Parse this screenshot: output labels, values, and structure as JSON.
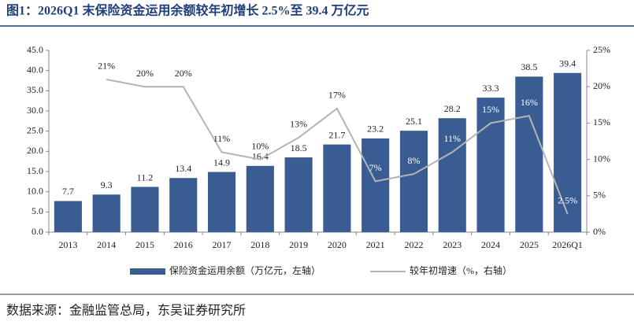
{
  "chart_data": {
    "type": "bar_line",
    "title": "图1：2026Q1 末保险资金运用余额较年初增长 2.5%至 39.4 万亿元",
    "source": "数据来源：金融监管总局，东吴证券研究所",
    "categories": [
      "2013",
      "2014",
      "2015",
      "2016",
      "2017",
      "2018",
      "2019",
      "2020",
      "2021",
      "2022",
      "2023",
      "2024",
      "2025",
      "2026Q1"
    ],
    "series": [
      {
        "name": "保险资金运用余额（万亿元，左轴）",
        "type": "bar",
        "color": "#395d92",
        "values": [
          7.7,
          9.3,
          11.2,
          13.4,
          14.9,
          16.4,
          18.5,
          21.7,
          23.2,
          25.1,
          28.2,
          33.3,
          38.5,
          39.4
        ]
      },
      {
        "name": "较年初增速（%，右轴）",
        "type": "line",
        "axis": "y2",
        "color": "#b4b4b4",
        "values": [
          null,
          21,
          20,
          20,
          11,
          10,
          13,
          17,
          7,
          8,
          11,
          15,
          16,
          2.5
        ],
        "value_labels": [
          null,
          "21%",
          "20%",
          "20%",
          "11%",
          "10%",
          "13%",
          "17%",
          "7%",
          "8%",
          "11%",
          "15%",
          "16%",
          "2.5%"
        ]
      }
    ],
    "ylim": [
      0,
      45
    ],
    "yticks": [
      {
        "value": 0,
        "label": "0.0"
      },
      {
        "value": 5,
        "label": "5.0"
      },
      {
        "value": 10,
        "label": "10.0"
      },
      {
        "value": 15,
        "label": "15.0"
      },
      {
        "value": 20,
        "label": "20.0"
      },
      {
        "value": 25,
        "label": "25.0"
      },
      {
        "value": 30,
        "label": "30.0"
      },
      {
        "value": 35,
        "label": "35.0"
      },
      {
        "value": 40,
        "label": "40.0"
      },
      {
        "value": 45,
        "label": "45.0"
      }
    ],
    "y2lim": [
      0,
      25
    ],
    "y2ticks": [
      {
        "value": 0,
        "label": "0%"
      },
      {
        "value": 5,
        "label": "5%"
      },
      {
        "value": 10,
        "label": "10%"
      },
      {
        "value": 15,
        "label": "15%"
      },
      {
        "value": 20,
        "label": "20%"
      },
      {
        "value": 25,
        "label": "25%"
      }
    ],
    "grid": false
  }
}
